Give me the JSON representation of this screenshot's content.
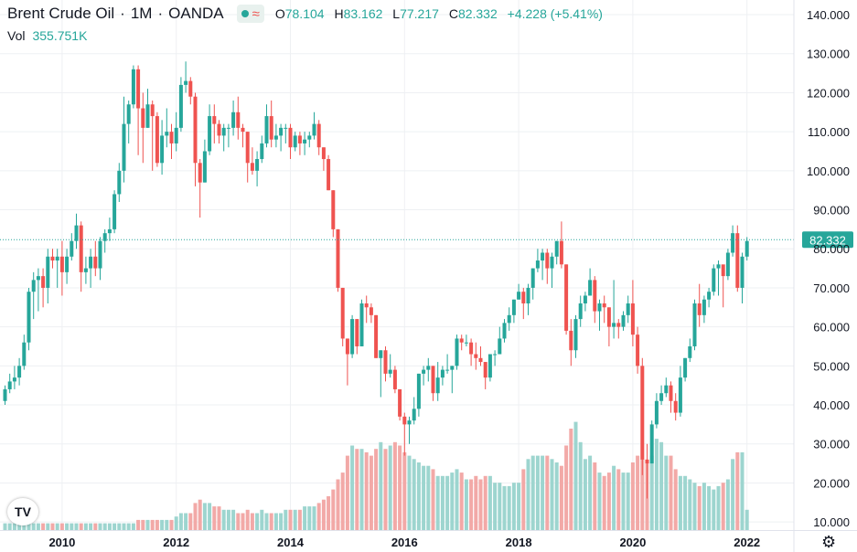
{
  "legend": {
    "symbol": "Brent Crude Oil",
    "interval": "1M",
    "exchange": "OANDA",
    "wave_glyph": "≈",
    "open_label": "O",
    "open": "78.104",
    "high_label": "H",
    "high": "83.162",
    "low_label": "L",
    "low": "77.217",
    "close_label": "C",
    "close": "82.332",
    "change": "+4.228 (+5.41%)"
  },
  "volume": {
    "label": "Vol",
    "value": "355.751K"
  },
  "logo_text": "TV",
  "gear_glyph": "⚙",
  "colors": {
    "up": "#26a69a",
    "down": "#ef5350",
    "vol_up": "#9dd5cf",
    "vol_down": "#f2a9a7",
    "grid": "#eef0f3",
    "price_line": "#26a69a"
  },
  "chart_data": {
    "type": "candlestick",
    "y_ticks": [
      "140.000",
      "130.000",
      "120.000",
      "110.000",
      "100.000",
      "90.000",
      "80.000",
      "70.000",
      "60.000",
      "50.000",
      "40.000",
      "30.000",
      "20.000",
      "10.000"
    ],
    "ylim": [
      7,
      142
    ],
    "x_ticks": [
      "2010",
      "2012",
      "2014",
      "2016",
      "2018",
      "2020",
      "2022"
    ],
    "last_price_label": "82.332",
    "last_price": 82.332,
    "volume_scale_max": 40,
    "ohlc_monthly": {
      "2009": [
        [
          41,
          45,
          40,
          44
        ],
        [
          44,
          48,
          43,
          46
        ],
        [
          46,
          50,
          44,
          47
        ],
        [
          47,
          52,
          45,
          50
        ],
        [
          50,
          58,
          49,
          56
        ],
        [
          56,
          70,
          54,
          69
        ],
        [
          69,
          74,
          62,
          72
        ],
        [
          72,
          75,
          64,
          73
        ],
        [
          73,
          75,
          65,
          70
        ],
        [
          70,
          80,
          66,
          78
        ],
        [
          78,
          80,
          75,
          77
        ],
        [
          77,
          80,
          70,
          78
        ]
      ],
      "2010": [
        [
          78,
          82,
          68,
          74
        ],
        [
          74,
          80,
          71,
          78
        ],
        [
          78,
          84,
          77,
          82
        ],
        [
          82,
          89,
          80,
          86
        ],
        [
          86,
          87,
          69,
          74
        ],
        [
          74,
          78,
          71,
          75
        ],
        [
          75,
          80,
          70,
          78
        ],
        [
          78,
          82,
          73,
          75
        ],
        [
          75,
          83,
          72,
          82
        ],
        [
          82,
          85,
          79,
          84
        ],
        [
          84,
          88,
          82,
          85
        ],
        [
          85,
          95,
          84,
          94
        ]
      ],
      "2011": [
        [
          94,
          102,
          92,
          100
        ],
        [
          100,
          119,
          97,
          112
        ],
        [
          112,
          118,
          107,
          117
        ],
        [
          117,
          127,
          116,
          126
        ],
        [
          126,
          127,
          104,
          116
        ],
        [
          116,
          120,
          102,
          111
        ],
        [
          111,
          121,
          111,
          117
        ],
        [
          117,
          118,
          100,
          114
        ],
        [
          114,
          115,
          101,
          102
        ],
        [
          102,
          113,
          99,
          109
        ],
        [
          109,
          116,
          106,
          110
        ],
        [
          110,
          112,
          103,
          107
        ]
      ],
      "2012": [
        [
          107,
          115,
          105,
          111
        ],
        [
          111,
          124,
          110,
          122
        ],
        [
          122,
          128,
          120,
          123
        ],
        [
          123,
          124,
          117,
          119
        ],
        [
          119,
          120,
          96,
          102
        ],
        [
          102,
          103,
          88,
          97
        ],
        [
          97,
          108,
          97,
          105
        ],
        [
          105,
          117,
          104,
          114
        ],
        [
          114,
          117,
          107,
          112
        ],
        [
          112,
          113,
          107,
          109
        ],
        [
          109,
          112,
          105,
          111
        ],
        [
          111,
          112,
          106,
          111
        ]
      ],
      "2013": [
        [
          111,
          118,
          109,
          115
        ],
        [
          115,
          119,
          108,
          111
        ],
        [
          111,
          112,
          106,
          110
        ],
        [
          110,
          110,
          97,
          102
        ],
        [
          102,
          106,
          99,
          100
        ],
        [
          100,
          105,
          96,
          103
        ],
        [
          103,
          109,
          102,
          107
        ],
        [
          107,
          117,
          106,
          114
        ],
        [
          114,
          118,
          106,
          108
        ],
        [
          108,
          112,
          106,
          109
        ],
        [
          109,
          112,
          105,
          111
        ],
        [
          111,
          112,
          107,
          111
        ]
      ],
      "2014": [
        [
          111,
          112,
          103,
          106
        ],
        [
          106,
          110,
          105,
          109
        ],
        [
          109,
          110,
          104,
          107
        ],
        [
          107,
          110,
          104,
          108
        ],
        [
          108,
          110,
          106,
          109
        ],
        [
          109,
          115,
          108,
          112
        ],
        [
          112,
          113,
          104,
          106
        ],
        [
          106,
          106,
          100,
          103
        ],
        [
          103,
          104,
          95,
          95
        ],
        [
          95,
          95,
          83,
          85
        ],
        [
          85,
          85,
          69,
          70
        ],
        [
          70,
          70,
          55,
          57
        ]
      ],
      "2015": [
        [
          57,
          57,
          45,
          53
        ],
        [
          53,
          63,
          52,
          62
        ],
        [
          62,
          62,
          53,
          55
        ],
        [
          55,
          67,
          55,
          66
        ],
        [
          66,
          68,
          61,
          65
        ],
        [
          65,
          66,
          61,
          63
        ],
        [
          63,
          63,
          52,
          52
        ],
        [
          52,
          54,
          42,
          54
        ],
        [
          54,
          55,
          46,
          48
        ],
        [
          48,
          53,
          47,
          49
        ],
        [
          49,
          50,
          43,
          44
        ],
        [
          44,
          44,
          36,
          37
        ]
      ],
      "2016": [
        [
          37,
          38,
          27,
          35
        ],
        [
          35,
          37,
          30,
          36
        ],
        [
          36,
          42,
          35,
          39
        ],
        [
          39,
          48,
          37,
          48
        ],
        [
          48,
          50,
          45,
          49
        ],
        [
          49,
          52,
          46,
          50
        ],
        [
          50,
          50,
          41,
          43
        ],
        [
          43,
          51,
          41,
          47
        ],
        [
          47,
          50,
          45,
          49
        ],
        [
          49,
          53,
          48,
          49
        ],
        [
          49,
          50,
          43,
          50
        ],
        [
          50,
          58,
          49,
          57
        ]
      ],
      "2017": [
        [
          57,
          58,
          54,
          56
        ],
        [
          56,
          58,
          55,
          56
        ],
        [
          56,
          57,
          50,
          53
        ],
        [
          53,
          56,
          49,
          52
        ],
        [
          52,
          55,
          50,
          51
        ],
        [
          51,
          51,
          44,
          47
        ],
        [
          47,
          53,
          46,
          53
        ],
        [
          53,
          54,
          50,
          53
        ],
        [
          53,
          60,
          53,
          57
        ],
        [
          57,
          62,
          56,
          61
        ],
        [
          61,
          65,
          59,
          63
        ],
        [
          63,
          67,
          61,
          67
        ]
      ],
      "2018": [
        [
          67,
          71,
          67,
          69
        ],
        [
          69,
          70,
          62,
          66
        ],
        [
          66,
          71,
          63,
          70
        ],
        [
          70,
          75,
          67,
          75
        ],
        [
          75,
          80,
          74,
          77
        ],
        [
          77,
          80,
          72,
          79
        ],
        [
          79,
          80,
          71,
          75
        ],
        [
          75,
          79,
          70,
          78
        ],
        [
          78,
          82,
          76,
          82
        ],
        [
          82,
          87,
          75,
          76
        ],
        [
          76,
          76,
          58,
          59
        ],
        [
          59,
          62,
          50,
          54
        ]
      ],
      "2019": [
        [
          54,
          63,
          52,
          62
        ],
        [
          62,
          68,
          60,
          66
        ],
        [
          66,
          69,
          64,
          68
        ],
        [
          68,
          75,
          68,
          72
        ],
        [
          72,
          73,
          61,
          64
        ],
        [
          64,
          67,
          59,
          66
        ],
        [
          66,
          68,
          61,
          65
        ],
        [
          65,
          65,
          55,
          60
        ],
        [
          60,
          72,
          57,
          61
        ],
        [
          61,
          62,
          57,
          60
        ],
        [
          60,
          64,
          59,
          63
        ],
        [
          63,
          68,
          61,
          66
        ]
      ],
      "2020": [
        [
          66,
          72,
          55,
          58
        ],
        [
          58,
          60,
          48,
          50
        ],
        [
          50,
          52,
          22,
          26
        ],
        [
          26,
          30,
          16,
          25
        ],
        [
          25,
          36,
          25,
          35
        ],
        [
          35,
          43,
          34,
          41
        ],
        [
          41,
          45,
          40,
          43
        ],
        [
          43,
          47,
          42,
          45
        ],
        [
          45,
          46,
          38,
          41
        ],
        [
          41,
          43,
          36,
          38
        ],
        [
          38,
          50,
          37,
          47
        ],
        [
          47,
          52,
          46,
          52
        ]
      ],
      "2021": [
        [
          52,
          57,
          51,
          55
        ],
        [
          55,
          67,
          54,
          66
        ],
        [
          66,
          71,
          60,
          63
        ],
        [
          63,
          68,
          61,
          67
        ],
        [
          67,
          70,
          65,
          69
        ],
        [
          69,
          76,
          68,
          75
        ],
        [
          75,
          77,
          68,
          76
        ],
        [
          76,
          73,
          65,
          73
        ],
        [
          73,
          80,
          72,
          79
        ],
        [
          79,
          86,
          78,
          84
        ],
        [
          84,
          86,
          69,
          70
        ],
        [
          70,
          79,
          66,
          78
        ]
      ],
      "2022": [
        [
          78,
          83,
          77,
          82
        ]
      ]
    },
    "volume_monthly": {
      "2009": [
        2,
        2,
        2,
        2,
        2,
        2,
        2,
        2,
        2,
        2,
        2,
        2
      ],
      "2010": [
        2,
        2,
        2,
        2,
        2,
        2,
        2,
        2,
        2,
        2,
        2,
        2
      ],
      "2011": [
        2,
        2,
        2,
        2,
        3,
        3,
        3,
        3,
        3,
        3,
        3,
        3
      ],
      "2012": [
        4,
        5,
        5,
        5,
        8,
        9,
        8,
        8,
        7,
        7,
        6,
        6
      ],
      "2013": [
        6,
        5,
        5,
        6,
        5,
        5,
        6,
        5,
        5,
        5,
        5,
        6
      ],
      "2014": [
        6,
        6,
        6,
        7,
        7,
        7,
        8,
        9,
        10,
        12,
        15,
        17
      ],
      "2015": [
        22,
        25,
        24,
        24,
        23,
        22,
        24,
        26,
        24,
        25,
        26,
        25
      ],
      "2016": [
        23,
        22,
        21,
        20,
        19,
        19,
        18,
        16,
        16,
        16,
        17,
        18
      ],
      "2017": [
        17,
        15,
        15,
        16,
        15,
        16,
        16,
        14,
        14,
        13,
        13,
        14
      ],
      "2018": [
        14,
        18,
        21,
        22,
        22,
        22,
        22,
        21,
        20,
        19,
        25,
        30
      ],
      "2019": [
        32,
        26,
        21,
        22,
        20,
        17,
        16,
        17,
        19,
        18,
        17,
        17
      ],
      "2020": [
        20,
        22,
        21,
        20,
        22,
        27,
        26,
        22,
        22,
        18,
        16,
        16
      ],
      "2021": [
        15,
        14,
        13,
        14,
        13,
        12,
        13,
        14,
        15,
        21,
        23,
        23
      ],
      "2022": [
        6
      ]
    }
  }
}
